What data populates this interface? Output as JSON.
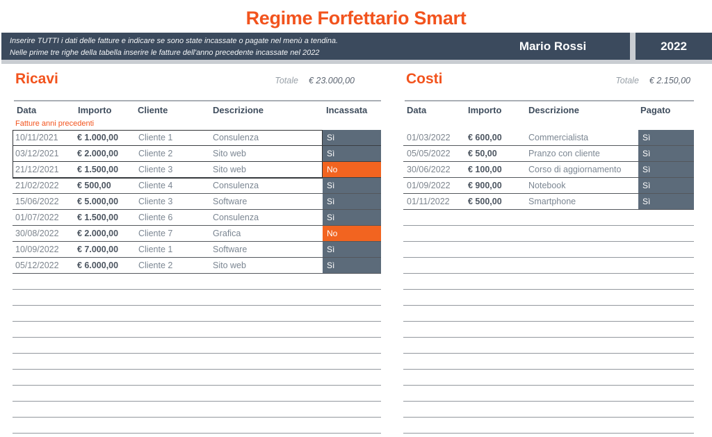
{
  "title": "Regime Forfettario Smart",
  "banner": {
    "line1": "Inserire TUTTI i dati delle fatture e indicare se sono state incassate o pagate nel menù a tendina.",
    "line2": "Nelle prime tre righe della tabella inserire le fatture dell'anno precedente incassate nel 2022",
    "holder_name": "Mario Rossi",
    "year": "2022"
  },
  "colors": {
    "accent_orange": "#f2531d",
    "banner_background": "#3b4a5d",
    "status_yes_background": "#5c6b7a",
    "status_no_background": "#f26420"
  },
  "ricavi": {
    "heading": "Ricavi",
    "total_label": "Totale",
    "total_value": "€ 23.000,00",
    "columns": [
      "Data",
      "Importo",
      "Cliente",
      "Descrizione",
      "Incassata"
    ],
    "group_label": "Fatture anni precedenti",
    "rows": [
      {
        "data": "10/11/2021",
        "importo": "€ 1.000,00",
        "cliente": "Cliente 1",
        "descrizione": "Consulenza",
        "stato": "Sì",
        "prev": true
      },
      {
        "data": "03/12/2021",
        "importo": "€ 2.000,00",
        "cliente": "Cliente 2",
        "descrizione": "Sito web",
        "stato": "Sì",
        "prev": true
      },
      {
        "data": "21/12/2021",
        "importo": "€ 1.500,00",
        "cliente": "Cliente 3",
        "descrizione": "Sito web",
        "stato": "No",
        "prev": true
      },
      {
        "data": "21/02/2022",
        "importo": "€ 500,00",
        "cliente": "Cliente 4",
        "descrizione": "Consulenza",
        "stato": "Sì"
      },
      {
        "data": "15/06/2022",
        "importo": "€ 5.000,00",
        "cliente": "Cliente 3",
        "descrizione": "Software",
        "stato": "Sì"
      },
      {
        "data": "01/07/2022",
        "importo": "€ 1.500,00",
        "cliente": "Cliente 6",
        "descrizione": "Consulenza",
        "stato": "Sì"
      },
      {
        "data": "30/08/2022",
        "importo": "€ 2.000,00",
        "cliente": "Cliente 7",
        "descrizione": "Grafica",
        "stato": "No"
      },
      {
        "data": "10/09/2022",
        "importo": "€ 7.000,00",
        "cliente": "Cliente 1",
        "descrizione": "Software",
        "stato": "Sì"
      },
      {
        "data": "05/12/2022",
        "importo": "€ 6.000,00",
        "cliente": "Cliente 2",
        "descrizione": "Sito web",
        "stato": "Sì"
      }
    ],
    "empty_rows": 10
  },
  "costi": {
    "heading": "Costi",
    "total_label": "Totale",
    "total_value": "€ 2.150,00",
    "columns": [
      "Data",
      "Importo",
      "Descrizione",
      "Pagato"
    ],
    "rows": [
      {
        "data": "01/03/2022",
        "importo": "€ 600,00",
        "descrizione": "Commercialista",
        "stato": "Sì"
      },
      {
        "data": "05/05/2022",
        "importo": "€ 50,00",
        "descrizione": "Pranzo con cliente",
        "stato": "Sì"
      },
      {
        "data": "30/06/2022",
        "importo": "€ 100,00",
        "descrizione": "Corso di aggiornamento",
        "stato": "Sì"
      },
      {
        "data": "01/09/2022",
        "importo": "€ 900,00",
        "descrizione": "Notebook",
        "stato": "Sì"
      },
      {
        "data": "01/11/2022",
        "importo": "€ 500,00",
        "descrizione": "Smartphone",
        "stato": "Sì"
      }
    ],
    "empty_rows": 14
  }
}
